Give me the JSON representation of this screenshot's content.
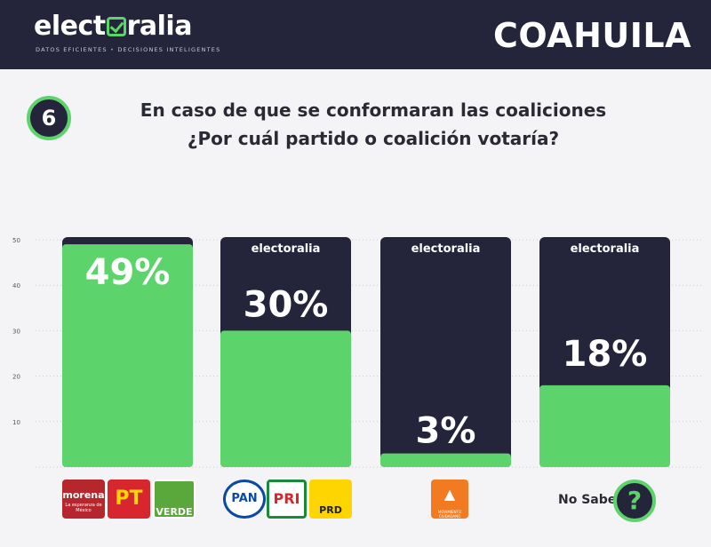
{
  "header": {
    "brand": "electoralia",
    "brand_left": "elect",
    "brand_right": "ralia",
    "tagline_left": "DATOS EFICIENTES",
    "tagline_right": "DECISIONES INTELIGENTES",
    "state": "COAHUILA"
  },
  "question": {
    "number": "6",
    "line1": "En caso de que se conformaran las coaliciones",
    "line2": "¿Por cuál partido o coalición votaría?"
  },
  "colors": {
    "navy": "#24253a",
    "green": "#5dd36b",
    "white": "#ffffff"
  },
  "chart_data": {
    "type": "bar",
    "categories": [
      "morena PT VERDE",
      "PAN PRI PRD",
      "MC",
      "No Sabe"
    ],
    "values": [
      49,
      30,
      3,
      18
    ],
    "value_labels": [
      "49%",
      "30%",
      "3%",
      "18%"
    ],
    "ylim": [
      0,
      50
    ],
    "yticks": [
      10,
      20,
      30,
      40,
      50
    ],
    "watermark": "electoralia",
    "grid": true
  },
  "legend": {
    "coalition1": [
      "morena",
      "PT",
      "VERDE"
    ],
    "morena_sub": "La esperanza de México",
    "coalition2": [
      "PAN",
      "PRI",
      "PRD"
    ],
    "mc": "MOVIMIENTO CIUDADANO",
    "no_sabe": "No Sabe",
    "question_mark": "?"
  }
}
